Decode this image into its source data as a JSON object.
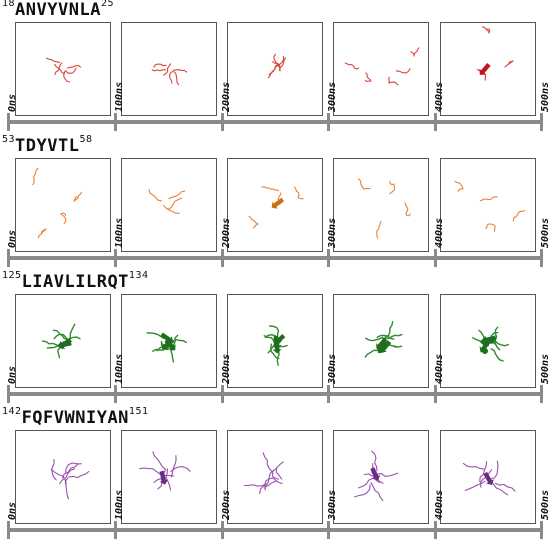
{
  "rows": [
    {
      "id": "anvyvnla",
      "sup_start": "18",
      "sequence": "ANVYVNLA",
      "sup_end": "25",
      "color": "#d9443c",
      "dark_color": "#c0161c",
      "times": [
        "0ns",
        "100ns",
        "200ns",
        "300ns",
        "400ns",
        "500ns"
      ]
    },
    {
      "id": "tdyvtl",
      "sup_start": "53",
      "sequence": "TDYVTL",
      "sup_end": "58",
      "color": "#e8823a",
      "dark_color": "#c9700a",
      "times": [
        "0ns",
        "100ns",
        "200ns",
        "300ns",
        "400ns",
        "500ns"
      ]
    },
    {
      "id": "liavlilrqt",
      "sup_start": "125",
      "sequence": "LIAVLILRQT",
      "sup_end": "134",
      "color": "#2e8b2e",
      "dark_color": "#1f6d1f",
      "times": [
        "0ns",
        "100ns",
        "200ns",
        "300ns",
        "400ns",
        "500ns"
      ]
    },
    {
      "id": "fqfvwniyan",
      "sup_start": "142",
      "sequence": "FQFVWNIYAN",
      "sup_end": "151",
      "color": "#9b4fb0",
      "dark_color": "#6a2d80",
      "times": [
        "0ns",
        "100ns",
        "200ns",
        "300ns",
        "400ns",
        "500ns"
      ]
    }
  ]
}
